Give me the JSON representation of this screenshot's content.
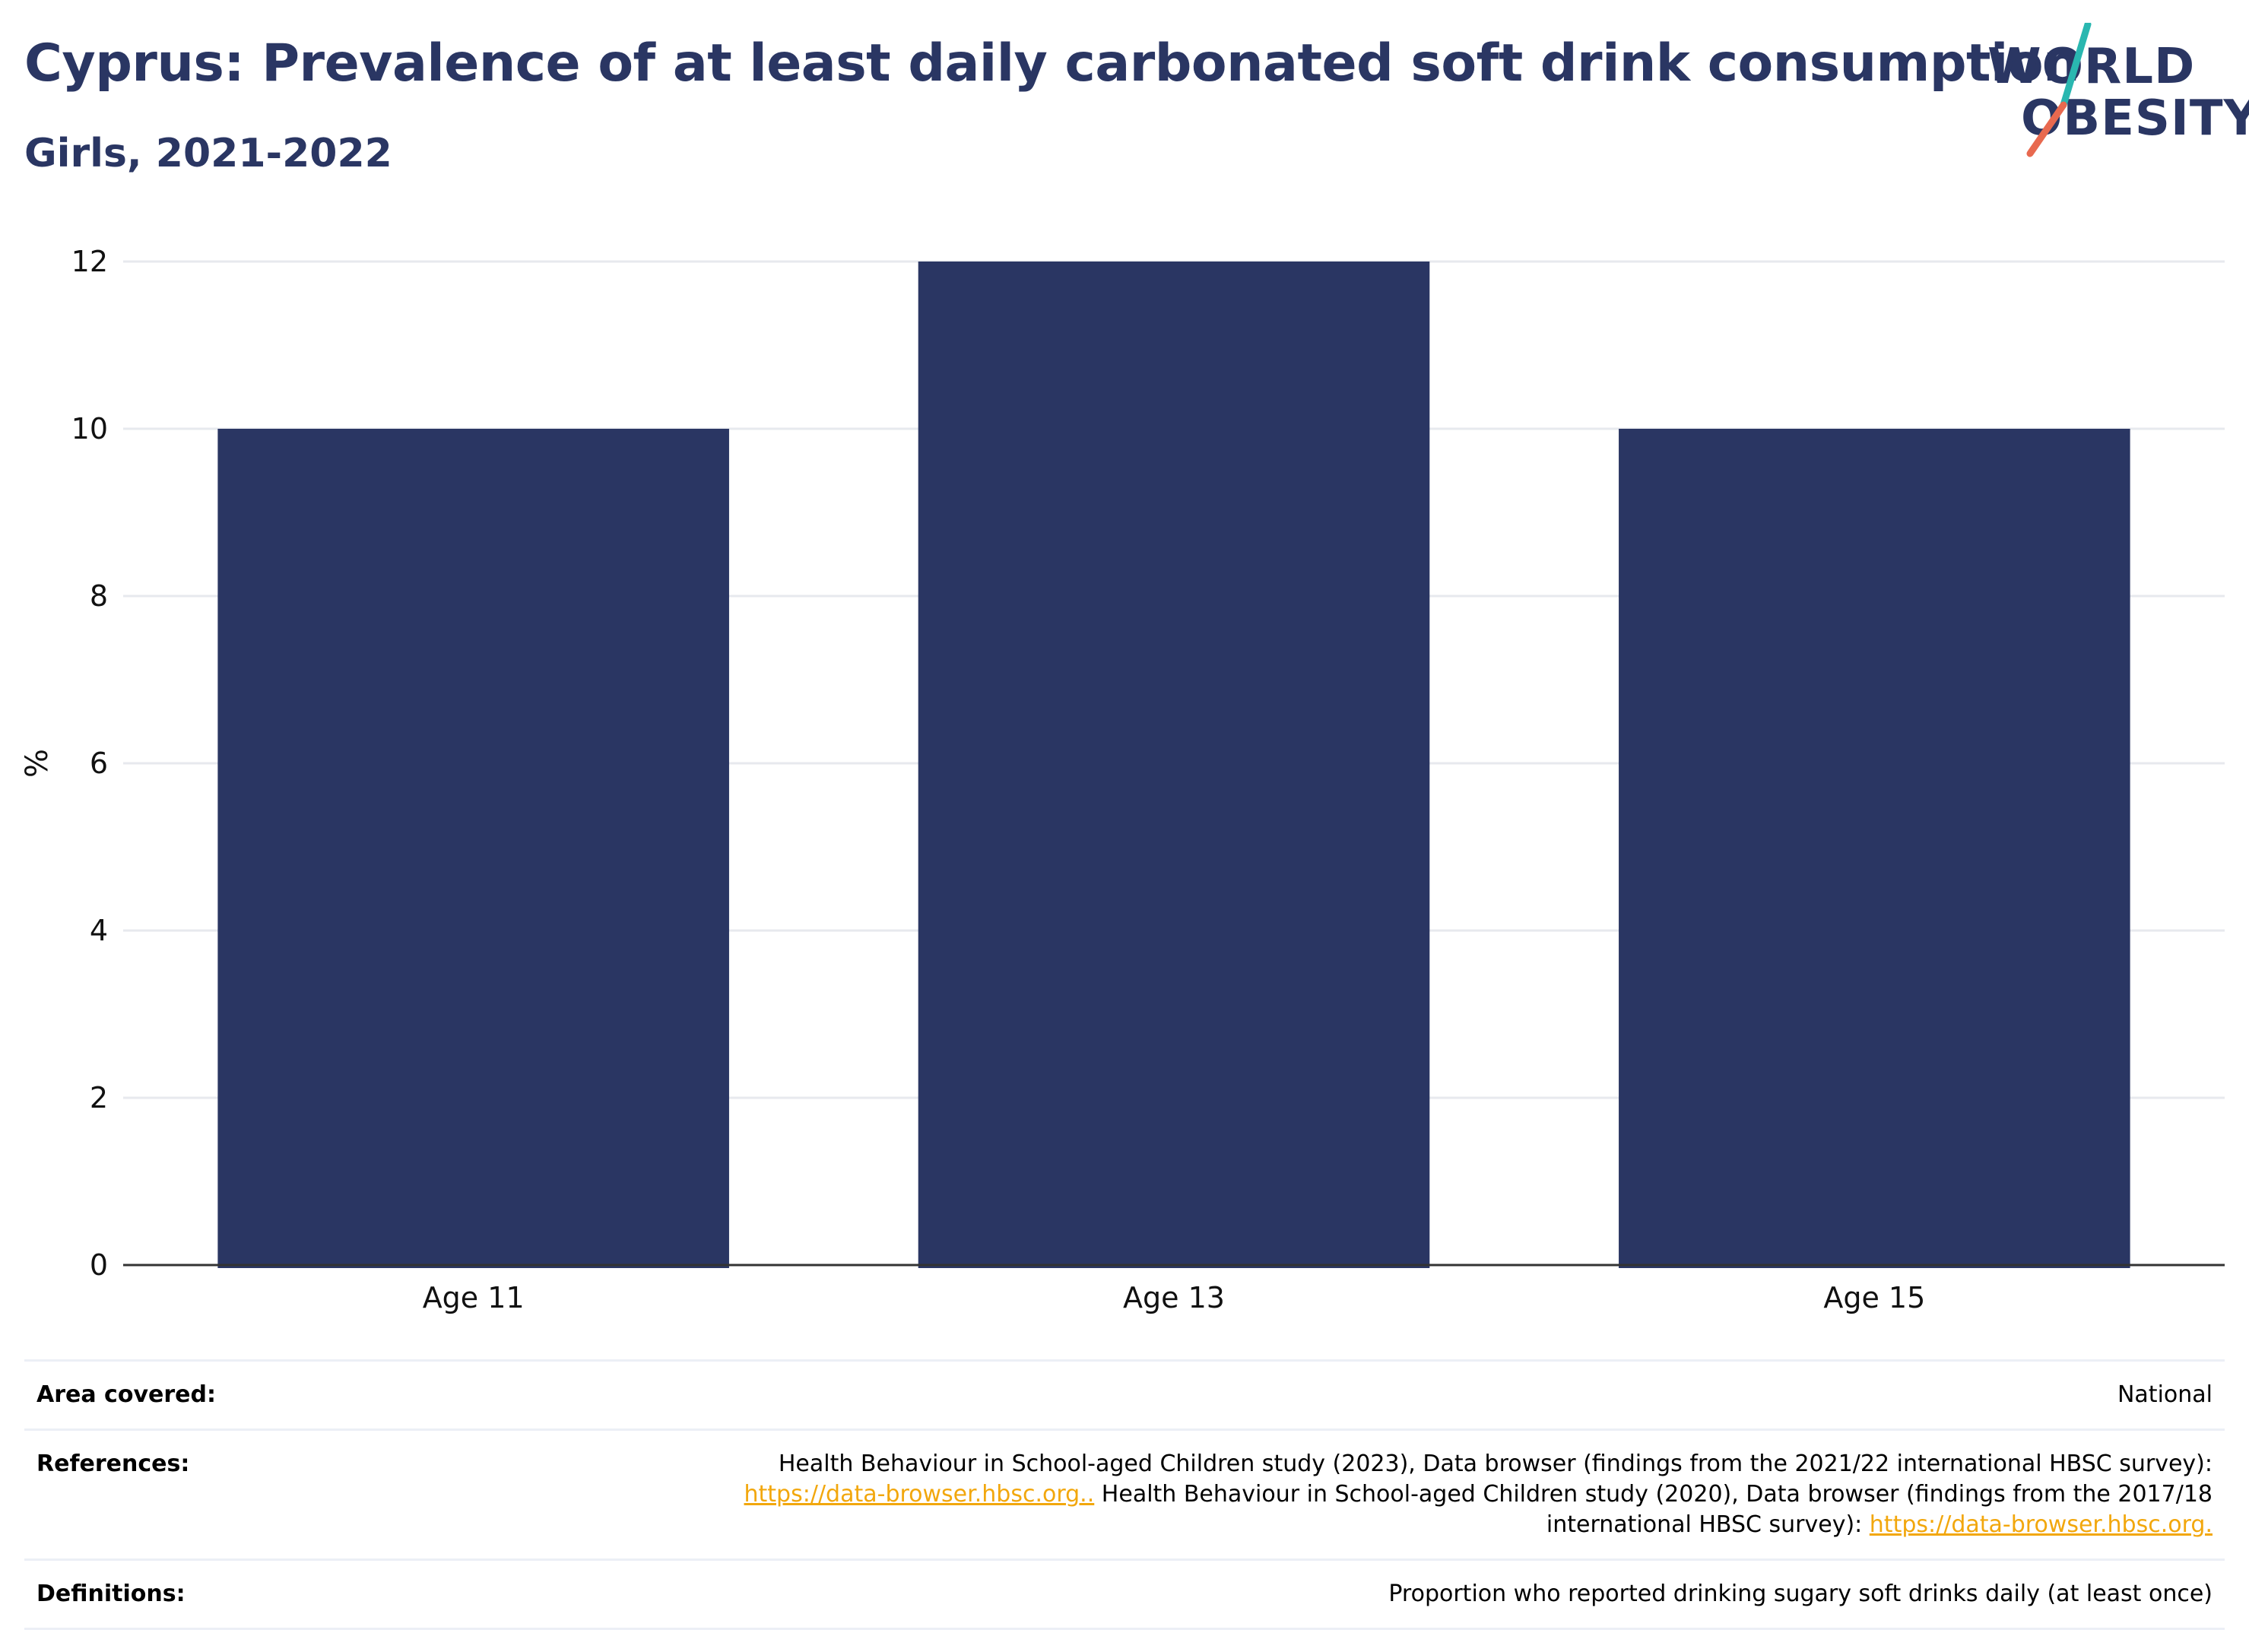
{
  "header": {
    "title": "Cyprus: Prevalence of at least daily carbonated soft drink consumption",
    "subtitle": "Girls, 2021-2022"
  },
  "logo": {
    "line1": "WORLD",
    "line2": "OBESITY",
    "text_color": "#2a3663",
    "slash_colors": [
      "#2ab7b0",
      "#e8694f"
    ]
  },
  "chart_data": {
    "type": "bar",
    "categories": [
      "Age 11",
      "Age 13",
      "Age 15"
    ],
    "values": [
      10,
      12,
      10
    ],
    "title": "Cyprus: Prevalence of at least daily carbonated soft drink consumption",
    "subtitle": "Girls, 2021-2022",
    "xlabel": "",
    "ylabel": "%",
    "ylim": [
      0,
      12
    ],
    "yticks": [
      0,
      2,
      4,
      6,
      8,
      10,
      12
    ],
    "grid": true,
    "legend": "none",
    "bar_color": "#2a3663"
  },
  "info": {
    "area": {
      "label": "Area covered:",
      "value": "National"
    },
    "references": {
      "label": "References:",
      "line1": "Health Behaviour in School-aged Children study (2023), Data browser (findings from the 2021/22 international HBSC survey):",
      "link1": "https://data-browser.hbsc.org..",
      "line2": " Health Behaviour in School-aged Children study (2020), Data browser (findings from the 2017/18",
      "line3": "international HBSC survey): ",
      "link2": "https://data-browser.hbsc.org."
    },
    "definitions": {
      "label": "Definitions:",
      "value": "Proportion who reported drinking sugary soft drinks daily (at least once)"
    }
  }
}
